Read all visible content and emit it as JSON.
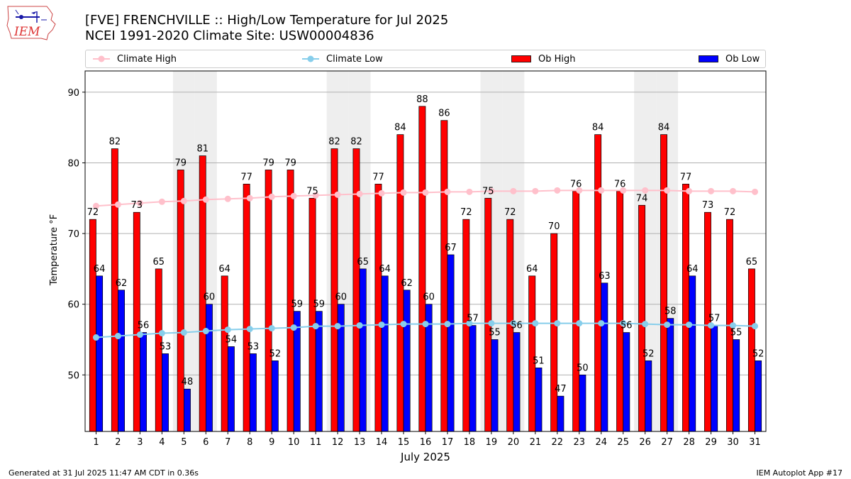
{
  "header": {
    "logo_text": "IEM",
    "title_line1": "[FVE] FRENCHVILLE :: High/Low Temperature for Jul 2025",
    "title_line2": "NCEI 1991-2020 Climate Site: USW00004836"
  },
  "footer": {
    "generated": "Generated at 31 Jul 2025 11:47 AM CDT in 0.36s",
    "app": "IEM Autoplot App #17"
  },
  "colors": {
    "ob_high": "#ff0000",
    "ob_low": "#0000ff",
    "climate_high": "#ffc0cb",
    "climate_low": "#87ceeb",
    "weekend_shade": "#eeeeee",
    "grid": "#b0b0b0"
  },
  "chart_data": {
    "type": "bar",
    "title": "[FVE] FRENCHVILLE :: High/Low Temperature for Jul 2025",
    "subtitle": "NCEI 1991-2020 Climate Site: USW00004836",
    "xlabel": "July 2025",
    "ylabel": "Temperature °F",
    "ylim": [
      42,
      93
    ],
    "yticks": [
      50,
      60,
      70,
      80,
      90
    ],
    "grid": "horizontal",
    "legend_placement": "top",
    "shaded_days": [
      5,
      6,
      12,
      13,
      19,
      20,
      26,
      27
    ],
    "categories": [
      "1",
      "2",
      "3",
      "4",
      "5",
      "6",
      "7",
      "8",
      "9",
      "10",
      "11",
      "12",
      "13",
      "14",
      "15",
      "16",
      "17",
      "18",
      "19",
      "20",
      "21",
      "22",
      "23",
      "24",
      "25",
      "26",
      "27",
      "28",
      "29",
      "30",
      "31"
    ],
    "series": [
      {
        "name": "Ob High",
        "kind": "bar",
        "values": [
          72,
          82,
          73,
          65,
          79,
          81,
          64,
          77,
          79,
          79,
          75,
          82,
          82,
          77,
          84,
          88,
          86,
          72,
          75,
          72,
          64,
          70,
          76,
          84,
          76,
          74,
          84,
          77,
          73,
          72,
          65
        ]
      },
      {
        "name": "Ob Low",
        "kind": "bar",
        "values": [
          64,
          62,
          56,
          53,
          48,
          60,
          54,
          53,
          52,
          59,
          59,
          60,
          65,
          64,
          62,
          60,
          67,
          57,
          55,
          56,
          51,
          47,
          50,
          63,
          56,
          52,
          58,
          64,
          57,
          55,
          52
        ]
      },
      {
        "name": "Climate High",
        "kind": "line",
        "values": [
          73.9,
          74.1,
          74.3,
          74.5,
          74.6,
          74.8,
          74.9,
          75.0,
          75.2,
          75.3,
          75.4,
          75.5,
          75.6,
          75.7,
          75.8,
          75.8,
          75.9,
          75.9,
          76.0,
          76.0,
          76.0,
          76.1,
          76.1,
          76.1,
          76.1,
          76.1,
          76.1,
          76.0,
          76.0,
          76.0,
          75.9
        ]
      },
      {
        "name": "Climate Low",
        "kind": "line",
        "values": [
          55.3,
          55.5,
          55.7,
          55.9,
          56.0,
          56.2,
          56.4,
          56.5,
          56.6,
          56.7,
          56.9,
          56.9,
          57.0,
          57.1,
          57.2,
          57.2,
          57.2,
          57.3,
          57.3,
          57.3,
          57.3,
          57.3,
          57.3,
          57.3,
          57.3,
          57.2,
          57.1,
          57.1,
          57.0,
          57.0,
          56.9
        ]
      }
    ]
  }
}
